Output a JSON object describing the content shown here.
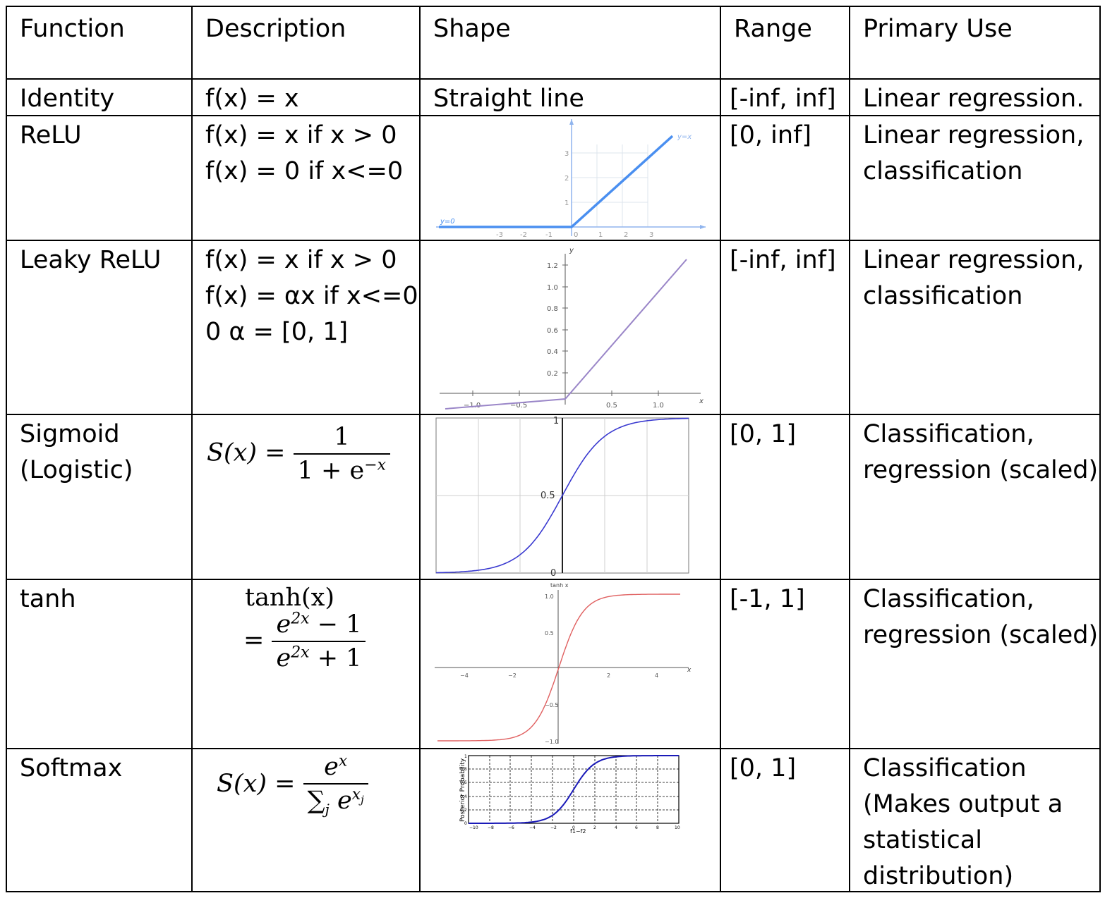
{
  "headers": {
    "function": "Function",
    "description": "Description",
    "shape": "Shape",
    "range": "Range",
    "use": "Primary Use"
  },
  "rows": [
    {
      "function": "Identity",
      "description": [
        "f(x) = x"
      ],
      "shape": "Straight line",
      "range": "[-inf, inf]",
      "use": [
        "Linear regression."
      ]
    },
    {
      "function": "ReLU",
      "description": [
        "f(x) = x if x > 0",
        "f(x) = 0 if x<=0"
      ],
      "range": "[0, inf]",
      "use": [
        "Linear regression,",
        "classification"
      ]
    },
    {
      "function": "Leaky ReLU",
      "description": [
        "f(x) = x if x > 0",
        "f(x) = αx if x<=0,",
        "0 α = [0, 1]"
      ],
      "range": "[-inf, inf]",
      "use": [
        "Linear regression,",
        "classification"
      ]
    },
    {
      "function": [
        "Sigmoid",
        "(Logistic)"
      ],
      "formula": {
        "lhs": "S(x) =",
        "num": "1",
        "den": "1 + e",
        "exp": "−x"
      },
      "range": "[0, 1]",
      "use": [
        "Classification,",
        "regression (scaled)"
      ]
    },
    {
      "function": "tanh",
      "formula": {
        "line1": "tanh(x)",
        "eq": "=",
        "num": "e",
        "num_exp": "2x",
        "num_rest": " − 1",
        "den": "e",
        "den_exp": "2x",
        "den_rest": " + 1"
      },
      "range": "[-1, 1]",
      "use": [
        "Classification,",
        "regression (scaled)"
      ]
    },
    {
      "function": "Softmax",
      "formula": {
        "lhs": "S(x) =",
        "num": "e",
        "num_exp": "x",
        "den": "∑",
        "den_sub": "j",
        "den_e": " e",
        "den_exp": "x",
        "den_exp_sub": "j"
      },
      "range": "[0, 1]",
      "use": [
        "Classification",
        "(Makes output a",
        "statistical",
        "distribution)"
      ]
    }
  ],
  "charts": {
    "relu": {
      "x_ticks": [
        "-3",
        "-2",
        "-1",
        "0",
        "1",
        "2",
        "3"
      ],
      "y_ticks": [
        "1",
        "2",
        "3"
      ],
      "left_label": "y=0",
      "right_label": "y=x",
      "color": "#4a8ff0"
    },
    "leaky": {
      "y_label": "y",
      "x_label": "x",
      "y_ticks": [
        "1.2",
        "1.0",
        "0.8",
        "0.6",
        "0.4",
        "0.2"
      ],
      "x_ticks": [
        "−1.0",
        "−0.5",
        "0.5",
        "1.0"
      ],
      "color": "#9a86c8"
    },
    "sigmoid": {
      "y_ticks": [
        "1",
        "0.5",
        "0"
      ],
      "color": "#3a3ad0"
    },
    "tanh": {
      "title": "tanh x",
      "x_label": "x",
      "y_ticks": [
        "1.0",
        "0.5",
        "−0.5",
        "−1.0"
      ],
      "x_ticks": [
        "−4",
        "−2",
        "2",
        "4"
      ],
      "color": "#e06060"
    },
    "softmax": {
      "y_label": "Posterior Probability",
      "x_label": "f1−f2",
      "x_ticks": [
        "−10",
        "−8",
        "−6",
        "−4",
        "−2",
        "0",
        "2",
        "4",
        "6",
        "8",
        "10"
      ],
      "y_ticks": [
        "0",
        "0.2",
        "0.4",
        "0.6",
        "0.8",
        "1"
      ],
      "color": "#1a1ab8"
    }
  }
}
